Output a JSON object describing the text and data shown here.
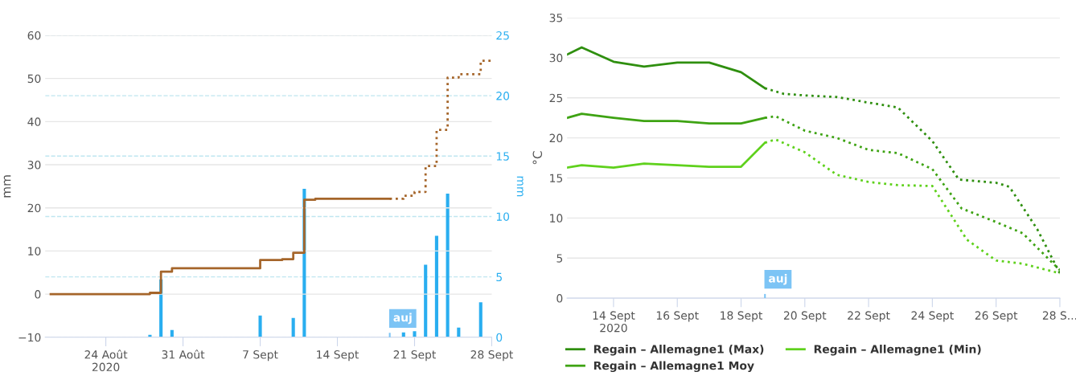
{
  "chart_data": [
    {
      "type": "step",
      "ylabel": "mm",
      "y2label": "mm",
      "grid": "y",
      "xlim": [
        "2020-08-18T12:00",
        "2020-09-28"
      ],
      "xticks": [
        {
          "value": "2020-08-24",
          "label": "24 Août\n2020"
        },
        {
          "value": "2020-08-31",
          "label": "31 Août"
        },
        {
          "value": "2020-09-07",
          "label": "7 Sept"
        },
        {
          "value": "2020-09-14",
          "label": "14 Sept"
        },
        {
          "value": "2020-09-21",
          "label": "21 Sept"
        },
        {
          "value": "2020-09-28",
          "label": "28 Sept"
        }
      ],
      "ylim": [
        -10,
        60
      ],
      "yticks": [
        {
          "value": -10,
          "label": "−10"
        },
        0,
        10,
        20,
        30,
        40,
        50,
        60
      ],
      "y2lim": [
        0,
        25
      ],
      "y2ticks": [
        0,
        5,
        10,
        15,
        20,
        25
      ],
      "series": [
        {
          "type": "bar",
          "axis": "y2",
          "color": "#29aef0",
          "x": [
            "2020-08-28",
            "2020-08-29",
            "2020-08-30",
            "2020-09-07",
            "2020-09-10",
            "2020-09-11",
            "2020-09-20",
            "2020-09-21",
            "2020-09-22",
            "2020-09-23",
            "2020-09-24",
            "2020-09-25",
            "2020-09-27"
          ],
          "values": [
            0.2,
            4.8,
            0.6,
            1.8,
            1.6,
            12.3,
            0.4,
            0.5,
            6.0,
            8.4,
            11.9,
            0.8,
            2.9
          ]
        },
        {
          "type": "step",
          "color": "#a5652a",
          "line_style": "solid",
          "x": [
            "2020-08-19",
            "2020-08-28",
            "2020-08-29",
            "2020-08-30",
            "2020-09-07",
            "2020-09-09",
            "2020-09-10",
            "2020-09-11",
            "2020-09-12",
            "2020-09-18T18:00"
          ],
          "values": [
            0,
            0.3,
            5.2,
            6.0,
            7.9,
            8.1,
            9.6,
            21.9,
            22.1,
            22.1
          ]
        },
        {
          "type": "step",
          "color": "#a5652a",
          "line_style": "dotted",
          "x": [
            "2020-09-18T18:00",
            "2020-09-20",
            "2020-09-21",
            "2020-09-22",
            "2020-09-23",
            "2020-09-24",
            "2020-09-25",
            "2020-09-27",
            "2020-09-28"
          ],
          "values": [
            22.1,
            22.8,
            23.7,
            29.7,
            38.1,
            50.2,
            51.0,
            54.1,
            54.1
          ]
        }
      ],
      "annotations": [
        "auj"
      ]
    },
    {
      "type": "line",
      "ylabel": "°C",
      "grid": "y",
      "legend": "bottom",
      "xlim": [
        "2020-09-12T13:00",
        "2020-09-28"
      ],
      "xticks": [
        {
          "value": "2020-09-14",
          "label": "14 Sept\n2020"
        },
        {
          "value": "2020-09-16",
          "label": "16 Sept"
        },
        {
          "value": "2020-09-18",
          "label": "18 Sept"
        },
        {
          "value": "2020-09-20",
          "label": "20 Sept"
        },
        {
          "value": "2020-09-22",
          "label": "22 Sept"
        },
        {
          "value": "2020-09-24",
          "label": "24 Sept"
        },
        {
          "value": "2020-09-26",
          "label": "26 Sept"
        },
        {
          "value": "2020-09-28",
          "label": "28 S..."
        }
      ],
      "ylim": [
        0,
        35
      ],
      "yticks": [
        0,
        5,
        10,
        15,
        20,
        25,
        30,
        35
      ],
      "series": [
        {
          "name": "Regain – Allemagne1 (Max)",
          "color": "#2f8f0f",
          "line_style": "solid",
          "x": [
            "2020-09-12T13:00",
            "2020-09-13",
            "2020-09-14",
            "2020-09-14T23:00",
            "2020-09-16",
            "2020-09-17",
            "2020-09-18",
            "2020-09-18T18:00"
          ],
          "values": [
            30.4,
            31.3,
            29.5,
            28.9,
            29.4,
            29.4,
            28.2,
            26.2
          ]
        },
        {
          "color": "#2f8f0f",
          "line_style": "dotted",
          "x": [
            "2020-09-18T18:00",
            "2020-09-19T08:00",
            "2020-09-20",
            "2020-09-21",
            "2020-09-22",
            "2020-09-22T22:00",
            "2020-09-24",
            "2020-09-24T20:00",
            "2020-09-26",
            "2020-09-26T10:00",
            "2020-09-27T07:00",
            "2020-09-28"
          ],
          "values": [
            26.2,
            25.5,
            25.3,
            25.1,
            24.4,
            23.8,
            19.6,
            14.8,
            14.4,
            13.9,
            8.6,
            3.1
          ]
        },
        {
          "name": "Regain – Allemagne1 (Min)",
          "color": "#5fd11c",
          "line_style": "solid",
          "x": [
            "2020-09-12T13:00",
            "2020-09-13",
            "2020-09-14",
            "2020-09-14T23:00",
            "2020-09-16",
            "2020-09-17",
            "2020-09-18",
            "2020-09-18T18:00"
          ],
          "values": [
            16.3,
            16.6,
            16.3,
            16.8,
            16.6,
            16.4,
            16.4,
            19.4
          ]
        },
        {
          "color": "#5fd11c",
          "line_style": "dotted",
          "x": [
            "2020-09-18T18:00",
            "2020-09-19T02:00",
            "2020-09-20",
            "2020-09-21",
            "2020-09-22",
            "2020-09-22T22:00",
            "2020-09-24",
            "2020-09-25T02:00",
            "2020-09-26",
            "2020-09-26T20:00",
            "2020-09-28"
          ],
          "values": [
            19.4,
            19.8,
            18.2,
            15.4,
            14.5,
            14.1,
            14.0,
            7.3,
            4.7,
            4.3,
            3.1
          ]
        },
        {
          "name": "Regain – Allemagne1 Moy",
          "color": "#3ea313",
          "line_style": "solid",
          "x": [
            "2020-09-12T13:00",
            "2020-09-13",
            "2020-09-14",
            "2020-09-14T23:00",
            "2020-09-16",
            "2020-09-17",
            "2020-09-18",
            "2020-09-18T18:00"
          ],
          "values": [
            22.5,
            23.0,
            22.5,
            22.1,
            22.1,
            21.8,
            21.8,
            22.5
          ]
        },
        {
          "color": "#3ea313",
          "line_style": "dotted",
          "x": [
            "2020-09-18T18:00",
            "2020-09-19T02:00",
            "2020-09-20",
            "2020-09-21",
            "2020-09-22",
            "2020-09-22T22:00",
            "2020-09-24",
            "2020-09-24T22:00",
            "2020-09-26",
            "2020-09-26T20:00",
            "2020-09-28"
          ],
          "values": [
            22.5,
            22.7,
            20.9,
            20.0,
            18.5,
            18.1,
            16.1,
            11.2,
            9.5,
            8.1,
            3.5
          ]
        }
      ],
      "annotations": [
        "auj"
      ]
    }
  ]
}
